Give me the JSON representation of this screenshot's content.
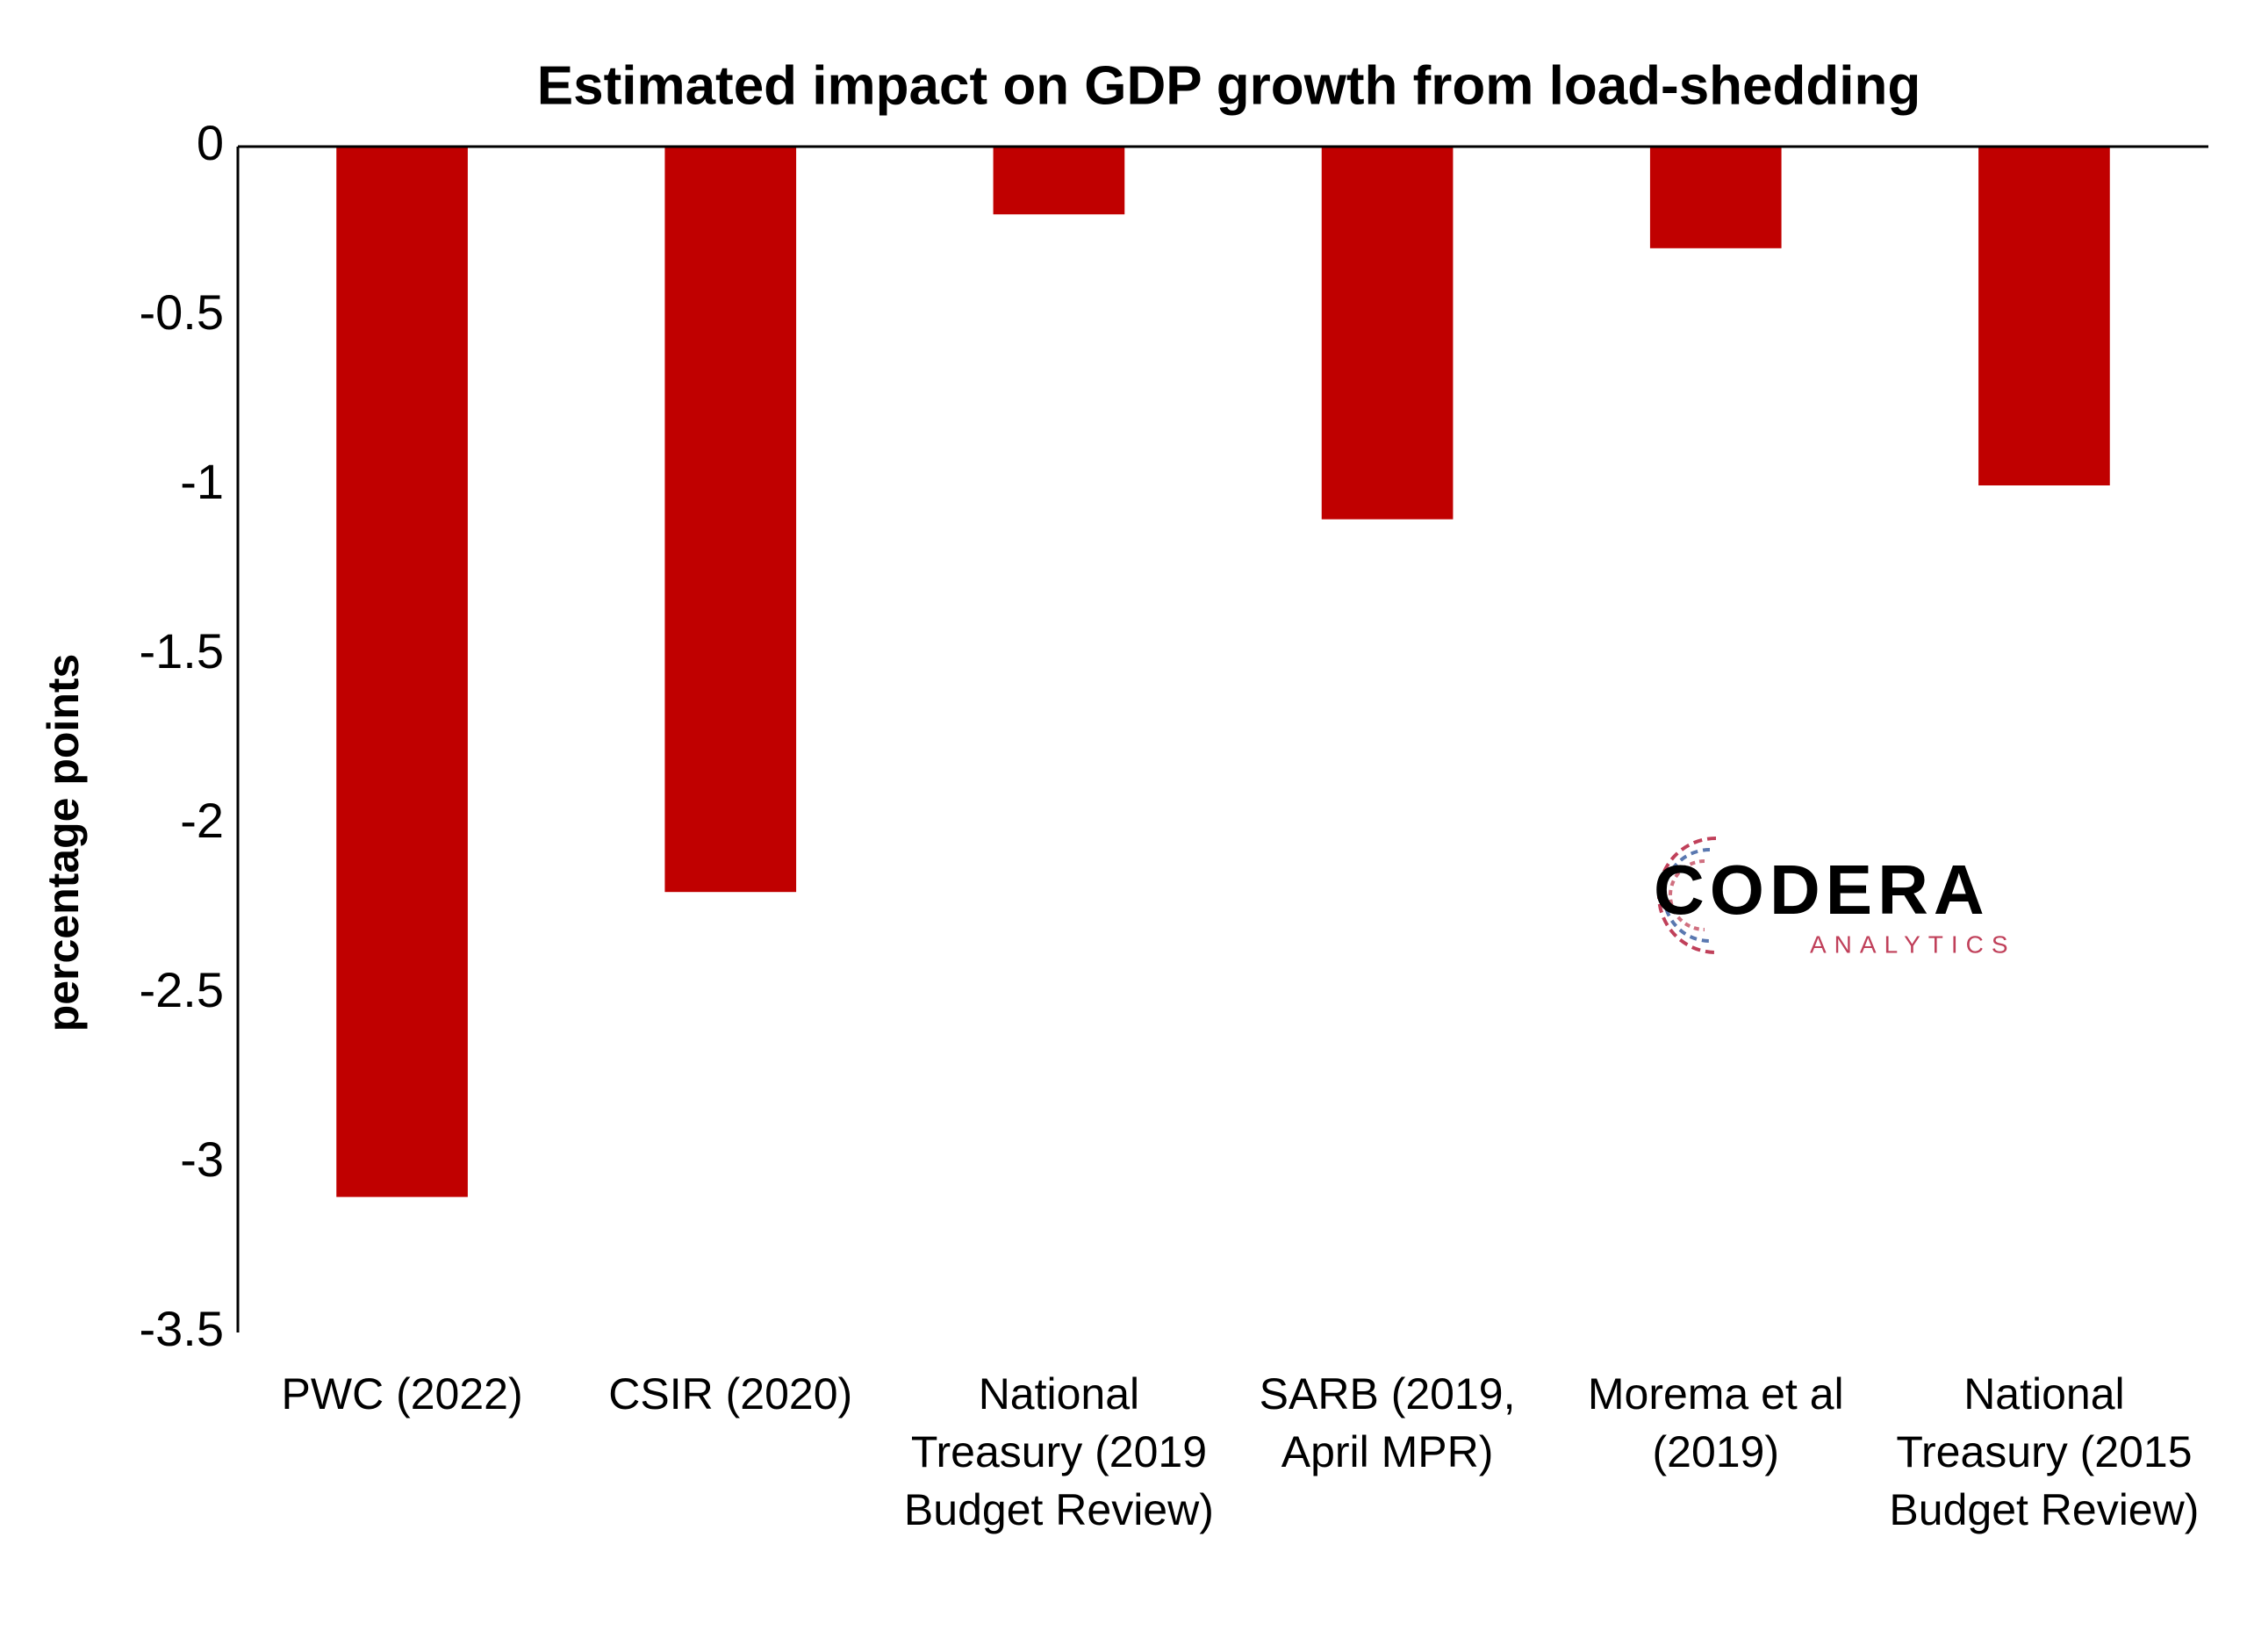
{
  "chart_data": {
    "type": "bar",
    "title": "Estimated impact on GDP growth from load-shedding",
    "y_label": "percentage points",
    "categories": [
      "PWC (2022)",
      "CSIR (2020)",
      "National Treasury (2019 Budget Review)",
      "SARB (2019, April MPR)",
      "Morema et al (2019)",
      "National Treasury (2015 Budget Review)"
    ],
    "values": [
      -3.1,
      -2.2,
      -0.2,
      -1.1,
      -0.3,
      -1.0
    ],
    "color": "#c00000",
    "ylim": [
      -3.5,
      0
    ],
    "yticks": [
      0,
      -0.5,
      -1,
      -1.5,
      -2,
      -2.5,
      -3,
      -3.5
    ],
    "grid": false
  },
  "logo": {
    "name": "CODERA",
    "tagline": "ANALYTICS"
  }
}
